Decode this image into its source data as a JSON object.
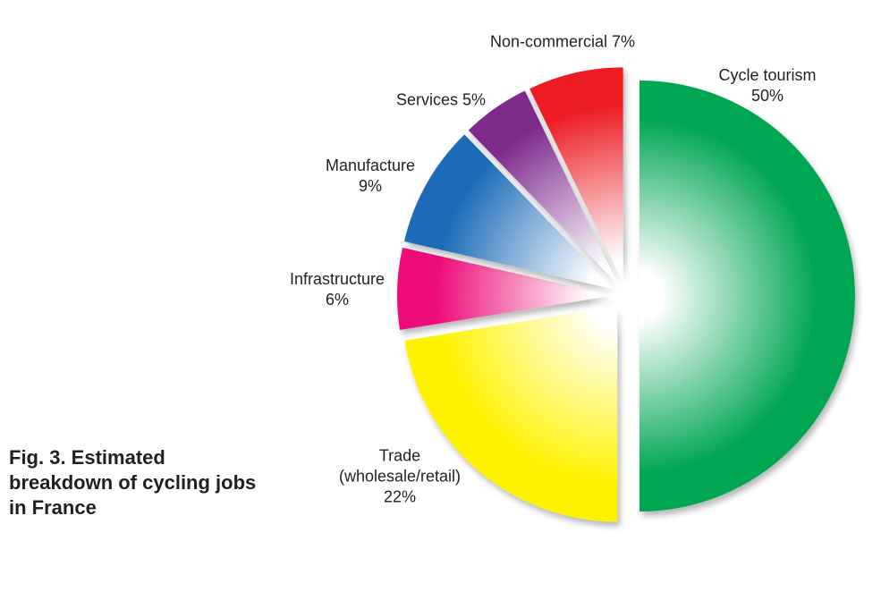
{
  "figure": {
    "caption_lines": [
      "Fig. 3. Estimated",
      "breakdown of cycling jobs",
      "in France"
    ]
  },
  "chart_data": {
    "type": "pie",
    "title": "Fig. 3. Estimated breakdown of cycling jobs in France",
    "unit": "%",
    "order": "clockwise-from-top",
    "style": {
      "exploded": true,
      "gradient": "white-center-to-color-rim",
      "background": "#FFFFFF",
      "text_color": "#231F20"
    },
    "slices": [
      {
        "name": "Cycle tourism",
        "value": 50,
        "color": "#00A651",
        "label_lines": [
          "Cycle tourism",
          "50%"
        ]
      },
      {
        "name": "Trade (wholesale/retail)",
        "value": 22,
        "color": "#FFF200",
        "label_lines": [
          "Trade",
          "(wholesale/retail)",
          "22%"
        ]
      },
      {
        "name": "Infrastructure",
        "value": 6,
        "color": "#EE0A78",
        "label_lines": [
          "Infrastructure",
          "6%"
        ]
      },
      {
        "name": "Manufacture",
        "value": 9,
        "color": "#1C6BB8",
        "label_lines": [
          "Manufacture",
          "9%"
        ]
      },
      {
        "name": "Services",
        "value": 5,
        "color": "#7E2B8D",
        "label_lines": [
          "Services 5%"
        ]
      },
      {
        "name": "Non-commercial",
        "value": 7,
        "color": "#EC1C24",
        "label_lines": [
          "Non-commercial 7%"
        ]
      }
    ]
  }
}
